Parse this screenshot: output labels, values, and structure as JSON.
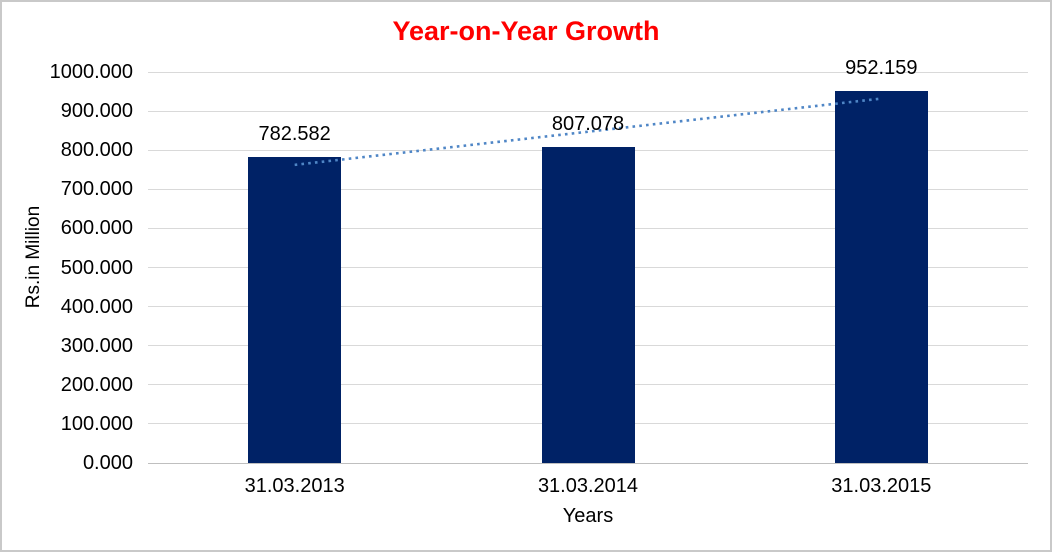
{
  "chart_data": {
    "type": "bar",
    "title": "Year-on-Year Growth",
    "title_color": "#ff0000",
    "xlabel": "Years",
    "ylabel": "Rs.in Million",
    "categories": [
      "31.03.2013",
      "31.03.2014",
      "31.03.2015"
    ],
    "values": [
      782.582,
      807.078,
      952.159
    ],
    "data_labels": [
      "782.582",
      "807.078",
      "952.159"
    ],
    "ylim": [
      0,
      1000
    ],
    "ytick_step": 100,
    "ytick_labels": [
      "0.000",
      "100.000",
      "200.000",
      "300.000",
      "400.000",
      "500.000",
      "600.000",
      "700.000",
      "800.000",
      "900.000",
      "1000.000"
    ],
    "grid": "horizontal",
    "legend": "none",
    "colors": {
      "bar": "#002266",
      "trendline": "#4f86c6",
      "gridline": "#d9d9d9",
      "axis_line": "#bfbfbf",
      "text": "#000000",
      "border": "#c9c9c9",
      "background": "#ffffff"
    },
    "trendline": {
      "type": "linear",
      "style": "dotted"
    }
  }
}
